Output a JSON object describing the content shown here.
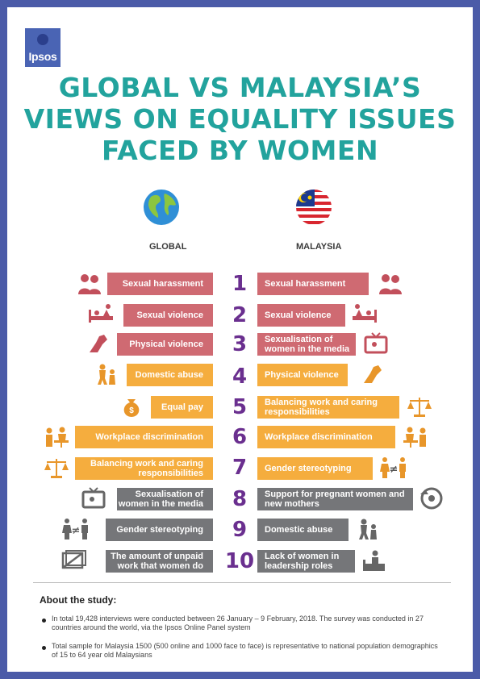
{
  "brand": {
    "logo_text": "Ipsos"
  },
  "title": {
    "line1": "GLOBAL VS MALAYSIA’S",
    "line2": "VIEWS ON EQUALITY ISSUES",
    "line3": "FACED BY WOMEN"
  },
  "columns": {
    "global_label": "GLOBAL",
    "malaysia_label": "MALAYSIA"
  },
  "colors": {
    "red": "#cf6a72",
    "orange": "#f5ad3e",
    "gray": "#757679",
    "teal": "#22a39d",
    "purple": "#6a2f8f",
    "frame": "#4b5ba8"
  },
  "ranks": [
    "1",
    "2",
    "3",
    "4",
    "5",
    "6",
    "7",
    "8",
    "9",
    "10"
  ],
  "global": [
    {
      "label": "Sexual harassment",
      "icon": "couple-icon"
    },
    {
      "label": "Sexual violence",
      "icon": "bed-violence-icon"
    },
    {
      "label": "Physical violence",
      "icon": "hand-gun-icon"
    },
    {
      "label": "Domestic abuse",
      "icon": "domestic-abuse-icon"
    },
    {
      "label": "Equal pay",
      "icon": "money-bag-icon"
    },
    {
      "label": "Workplace discrimination",
      "icon": "workplace-icon"
    },
    {
      "label": "Balancing work and caring responsibilities",
      "icon": "scale-icon"
    },
    {
      "label": "Sexualisation of women in the media",
      "icon": "tv-icon"
    },
    {
      "label": "Gender stereotyping",
      "icon": "gender-not-equal-icon"
    },
    {
      "label": "The amount of unpaid work that women do",
      "icon": "unpaid-work-icon"
    }
  ],
  "malaysia": [
    {
      "label": "Sexual harassment",
      "icon": "couple-icon"
    },
    {
      "label": "Sexual violence",
      "icon": "bed-violence-icon"
    },
    {
      "label": "Sexualisation of women in the media",
      "icon": "tv-icon"
    },
    {
      "label": "Physical violence",
      "icon": "hand-gun-icon"
    },
    {
      "label": "Balancing work and caring responsibilities",
      "icon": "scale-icon"
    },
    {
      "label": "Workplace discrimination",
      "icon": "workplace-icon"
    },
    {
      "label": "Gender stereotyping",
      "icon": "gender-not-equal-icon"
    },
    {
      "label": "Support for pregnant women and new mothers",
      "icon": "pregnant-icon"
    },
    {
      "label": "Domestic abuse",
      "icon": "domestic-abuse-icon"
    },
    {
      "label": "Lack of women in leadership roles",
      "icon": "leader-icon"
    }
  ],
  "about": {
    "title": "About the study:",
    "notes": [
      "In total 19,428 interviews were conducted between 26 January – 9 February, 2018. The survey was conducted in 27 countries around the world, via the Ipsos Online Panel system",
      "Total sample for Malaysia 1500 (500 online and 1000 face to face) is representative to national population demographics of 15 to 64 year old Malaysians"
    ]
  }
}
